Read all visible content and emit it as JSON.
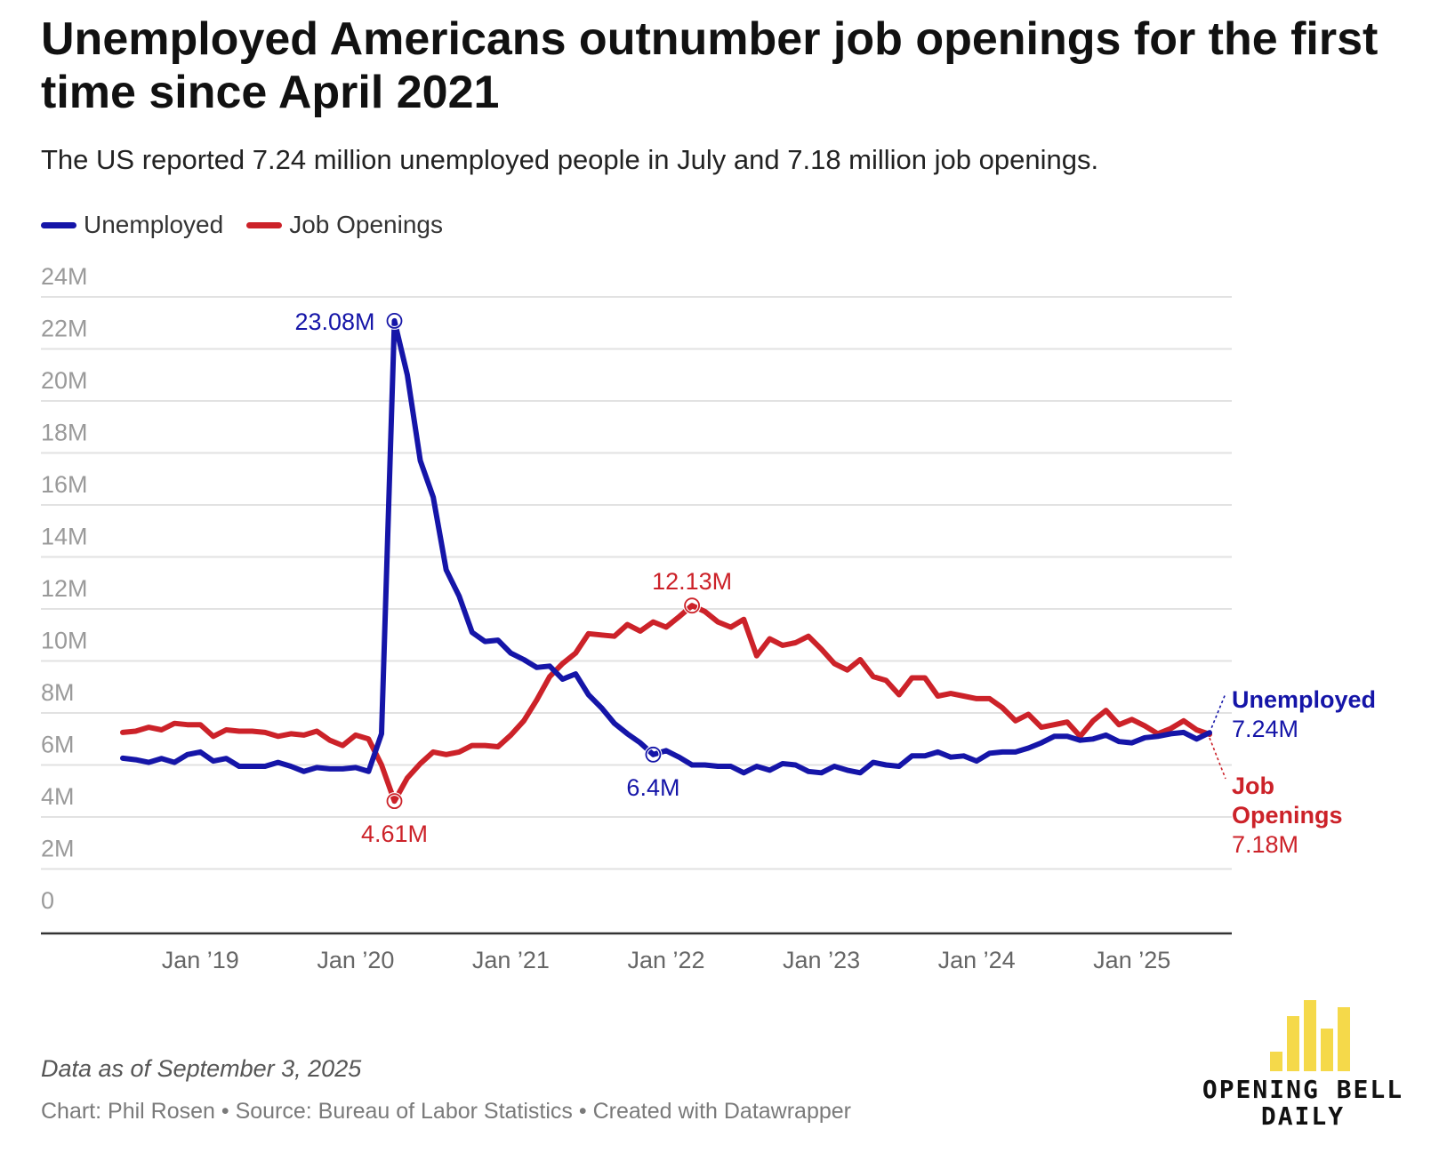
{
  "header": {
    "title": "Unemployed Americans outnumber job openings for the first time since April 2021",
    "subtitle": "The US reported 7.24 million unemployed people in July and 7.18 million job openings."
  },
  "legend": [
    {
      "label": "Unemployed",
      "color": "#1515a8"
    },
    {
      "label": "Job Openings",
      "color": "#cc2229"
    }
  ],
  "footer": {
    "note": "Data as of September 3, 2025",
    "credits": "Chart: Phil Rosen • Source: Bureau of Labor Statistics • Created with Datawrapper"
  },
  "logo": {
    "line1": "OPENING BELL",
    "line2": "DAILY",
    "color": "#f5d94a"
  },
  "chart_data": {
    "type": "line",
    "title": "Unemployed Americans outnumber job openings for the first time since April 2021",
    "subtitle": "The US reported 7.24 million unemployed people in July and 7.18 million job openings.",
    "xlabel": "",
    "ylabel": "",
    "y_unit": "million",
    "ylim": [
      0,
      24
    ],
    "y_ticks": [
      0,
      2,
      4,
      6,
      8,
      10,
      12,
      14,
      16,
      18,
      20,
      22,
      24
    ],
    "y_tick_labels": [
      "0",
      "2M",
      "4M",
      "6M",
      "8M",
      "10M",
      "12M",
      "14M",
      "16M",
      "18M",
      "20M",
      "22M",
      "24M"
    ],
    "x_ticks": [
      "2019-01",
      "2020-01",
      "2021-01",
      "2022-01",
      "2023-01",
      "2024-01",
      "2025-01"
    ],
    "x_tick_labels": [
      "Jan ’19",
      "Jan ’20",
      "Jan ’21",
      "Jan ’22",
      "Jan ’23",
      "Jan ’24",
      "Jan ’25"
    ],
    "x_range": [
      "2018-07",
      "2025-07"
    ],
    "grid": "horizontal",
    "legend_position": "top-left",
    "series": [
      {
        "name": "Unemployed",
        "color": "#1515a8",
        "end_label": "Unemployed",
        "end_value_label": "7.24M",
        "points": [
          [
            "2018-07",
            6.26
          ],
          [
            "2018-08",
            6.2
          ],
          [
            "2018-09",
            6.1
          ],
          [
            "2018-10",
            6.25
          ],
          [
            "2018-11",
            6.1
          ],
          [
            "2018-12",
            6.4
          ],
          [
            "2019-01",
            6.5
          ],
          [
            "2019-02",
            6.15
          ],
          [
            "2019-03",
            6.25
          ],
          [
            "2019-04",
            5.95
          ],
          [
            "2019-05",
            5.95
          ],
          [
            "2019-06",
            5.95
          ],
          [
            "2019-07",
            6.1
          ],
          [
            "2019-08",
            5.95
          ],
          [
            "2019-09",
            5.75
          ],
          [
            "2019-10",
            5.9
          ],
          [
            "2019-11",
            5.85
          ],
          [
            "2019-12",
            5.85
          ],
          [
            "2020-01",
            5.9
          ],
          [
            "2020-02",
            5.75
          ],
          [
            "2020-03",
            7.2
          ],
          [
            "2020-04",
            23.08
          ],
          [
            "2020-05",
            21.0
          ],
          [
            "2020-06",
            17.7
          ],
          [
            "2020-07",
            16.3
          ],
          [
            "2020-08",
            13.5
          ],
          [
            "2020-09",
            12.5
          ],
          [
            "2020-10",
            11.1
          ],
          [
            "2020-11",
            10.75
          ],
          [
            "2020-12",
            10.8
          ],
          [
            "2021-01",
            10.3
          ],
          [
            "2021-02",
            10.05
          ],
          [
            "2021-03",
            9.75
          ],
          [
            "2021-04",
            9.8
          ],
          [
            "2021-05",
            9.3
          ],
          [
            "2021-06",
            9.5
          ],
          [
            "2021-07",
            8.7
          ],
          [
            "2021-08",
            8.2
          ],
          [
            "2021-09",
            7.6
          ],
          [
            "2021-10",
            7.2
          ],
          [
            "2021-11",
            6.85
          ],
          [
            "2021-12",
            6.4
          ],
          [
            "2022-01",
            6.55
          ],
          [
            "2022-02",
            6.3
          ],
          [
            "2022-03",
            6.0
          ],
          [
            "2022-04",
            6.0
          ],
          [
            "2022-05",
            5.95
          ],
          [
            "2022-06",
            5.95
          ],
          [
            "2022-07",
            5.7
          ],
          [
            "2022-08",
            5.95
          ],
          [
            "2022-09",
            5.8
          ],
          [
            "2022-10",
            6.05
          ],
          [
            "2022-11",
            6.0
          ],
          [
            "2022-12",
            5.75
          ],
          [
            "2023-01",
            5.7
          ],
          [
            "2023-02",
            5.95
          ],
          [
            "2023-03",
            5.8
          ],
          [
            "2023-04",
            5.7
          ],
          [
            "2023-05",
            6.1
          ],
          [
            "2023-06",
            6.0
          ],
          [
            "2023-07",
            5.95
          ],
          [
            "2023-08",
            6.35
          ],
          [
            "2023-09",
            6.35
          ],
          [
            "2023-10",
            6.5
          ],
          [
            "2023-11",
            6.3
          ],
          [
            "2023-12",
            6.35
          ],
          [
            "2024-01",
            6.15
          ],
          [
            "2024-02",
            6.45
          ],
          [
            "2024-03",
            6.5
          ],
          [
            "2024-04",
            6.5
          ],
          [
            "2024-05",
            6.65
          ],
          [
            "2024-06",
            6.85
          ],
          [
            "2024-07",
            7.1
          ],
          [
            "2024-08",
            7.1
          ],
          [
            "2024-09",
            6.95
          ],
          [
            "2024-10",
            7.0
          ],
          [
            "2024-11",
            7.15
          ],
          [
            "2024-12",
            6.9
          ],
          [
            "2025-01",
            6.85
          ],
          [
            "2025-02",
            7.05
          ],
          [
            "2025-03",
            7.1
          ],
          [
            "2025-04",
            7.2
          ],
          [
            "2025-05",
            7.25
          ],
          [
            "2025-06",
            7.0
          ],
          [
            "2025-07",
            7.24
          ]
        ]
      },
      {
        "name": "Job Openings",
        "color": "#cc2229",
        "end_label": "Job Openings",
        "end_value_label": "7.18M",
        "points": [
          [
            "2018-07",
            7.25
          ],
          [
            "2018-08",
            7.3
          ],
          [
            "2018-09",
            7.45
          ],
          [
            "2018-10",
            7.35
          ],
          [
            "2018-11",
            7.6
          ],
          [
            "2018-12",
            7.55
          ],
          [
            "2019-01",
            7.55
          ],
          [
            "2019-02",
            7.1
          ],
          [
            "2019-03",
            7.35
          ],
          [
            "2019-04",
            7.3
          ],
          [
            "2019-05",
            7.3
          ],
          [
            "2019-06",
            7.25
          ],
          [
            "2019-07",
            7.1
          ],
          [
            "2019-08",
            7.2
          ],
          [
            "2019-09",
            7.15
          ],
          [
            "2019-10",
            7.3
          ],
          [
            "2019-11",
            6.95
          ],
          [
            "2019-12",
            6.75
          ],
          [
            "2020-01",
            7.15
          ],
          [
            "2020-02",
            7.0
          ],
          [
            "2020-03",
            6.0
          ],
          [
            "2020-04",
            4.61
          ],
          [
            "2020-05",
            5.5
          ],
          [
            "2020-06",
            6.05
          ],
          [
            "2020-07",
            6.5
          ],
          [
            "2020-08",
            6.4
          ],
          [
            "2020-09",
            6.5
          ],
          [
            "2020-10",
            6.75
          ],
          [
            "2020-11",
            6.75
          ],
          [
            "2020-12",
            6.7
          ],
          [
            "2021-01",
            7.15
          ],
          [
            "2021-02",
            7.7
          ],
          [
            "2021-03",
            8.5
          ],
          [
            "2021-04",
            9.4
          ],
          [
            "2021-05",
            9.9
          ],
          [
            "2021-06",
            10.3
          ],
          [
            "2021-07",
            11.05
          ],
          [
            "2021-08",
            11.0
          ],
          [
            "2021-09",
            10.95
          ],
          [
            "2021-10",
            11.4
          ],
          [
            "2021-11",
            11.15
          ],
          [
            "2021-12",
            11.5
          ],
          [
            "2022-01",
            11.3
          ],
          [
            "2022-02",
            11.7
          ],
          [
            "2022-03",
            12.13
          ],
          [
            "2022-04",
            11.9
          ],
          [
            "2022-05",
            11.5
          ],
          [
            "2022-06",
            11.3
          ],
          [
            "2022-07",
            11.6
          ],
          [
            "2022-08",
            10.2
          ],
          [
            "2022-09",
            10.85
          ],
          [
            "2022-10",
            10.6
          ],
          [
            "2022-11",
            10.7
          ],
          [
            "2022-12",
            10.95
          ],
          [
            "2023-01",
            10.45
          ],
          [
            "2023-02",
            9.9
          ],
          [
            "2023-03",
            9.65
          ],
          [
            "2023-04",
            10.05
          ],
          [
            "2023-05",
            9.4
          ],
          [
            "2023-06",
            9.25
          ],
          [
            "2023-07",
            8.7
          ],
          [
            "2023-08",
            9.35
          ],
          [
            "2023-09",
            9.35
          ],
          [
            "2023-10",
            8.65
          ],
          [
            "2023-11",
            8.75
          ],
          [
            "2023-12",
            8.65
          ],
          [
            "2024-01",
            8.55
          ],
          [
            "2024-02",
            8.55
          ],
          [
            "2024-03",
            8.2
          ],
          [
            "2024-04",
            7.7
          ],
          [
            "2024-05",
            7.95
          ],
          [
            "2024-06",
            7.45
          ],
          [
            "2024-07",
            7.55
          ],
          [
            "2024-08",
            7.65
          ],
          [
            "2024-09",
            7.1
          ],
          [
            "2024-10",
            7.7
          ],
          [
            "2024-11",
            8.1
          ],
          [
            "2024-12",
            7.55
          ],
          [
            "2025-01",
            7.75
          ],
          [
            "2025-02",
            7.5
          ],
          [
            "2025-03",
            7.2
          ],
          [
            "2025-04",
            7.4
          ],
          [
            "2025-05",
            7.7
          ],
          [
            "2025-06",
            7.35
          ],
          [
            "2025-07",
            7.18
          ]
        ]
      }
    ],
    "annotations": [
      {
        "text": "23.08M",
        "series": "Unemployed",
        "date": "2020-04",
        "value": 23.08,
        "placement": "left"
      },
      {
        "text": "6.4M",
        "series": "Unemployed",
        "date": "2021-12",
        "value": 6.4,
        "placement": "below"
      },
      {
        "text": "4.61M",
        "series": "Job Openings",
        "date": "2020-04",
        "value": 4.61,
        "placement": "below"
      },
      {
        "text": "12.13M",
        "series": "Job Openings",
        "date": "2022-03",
        "value": 12.13,
        "placement": "above"
      }
    ]
  }
}
